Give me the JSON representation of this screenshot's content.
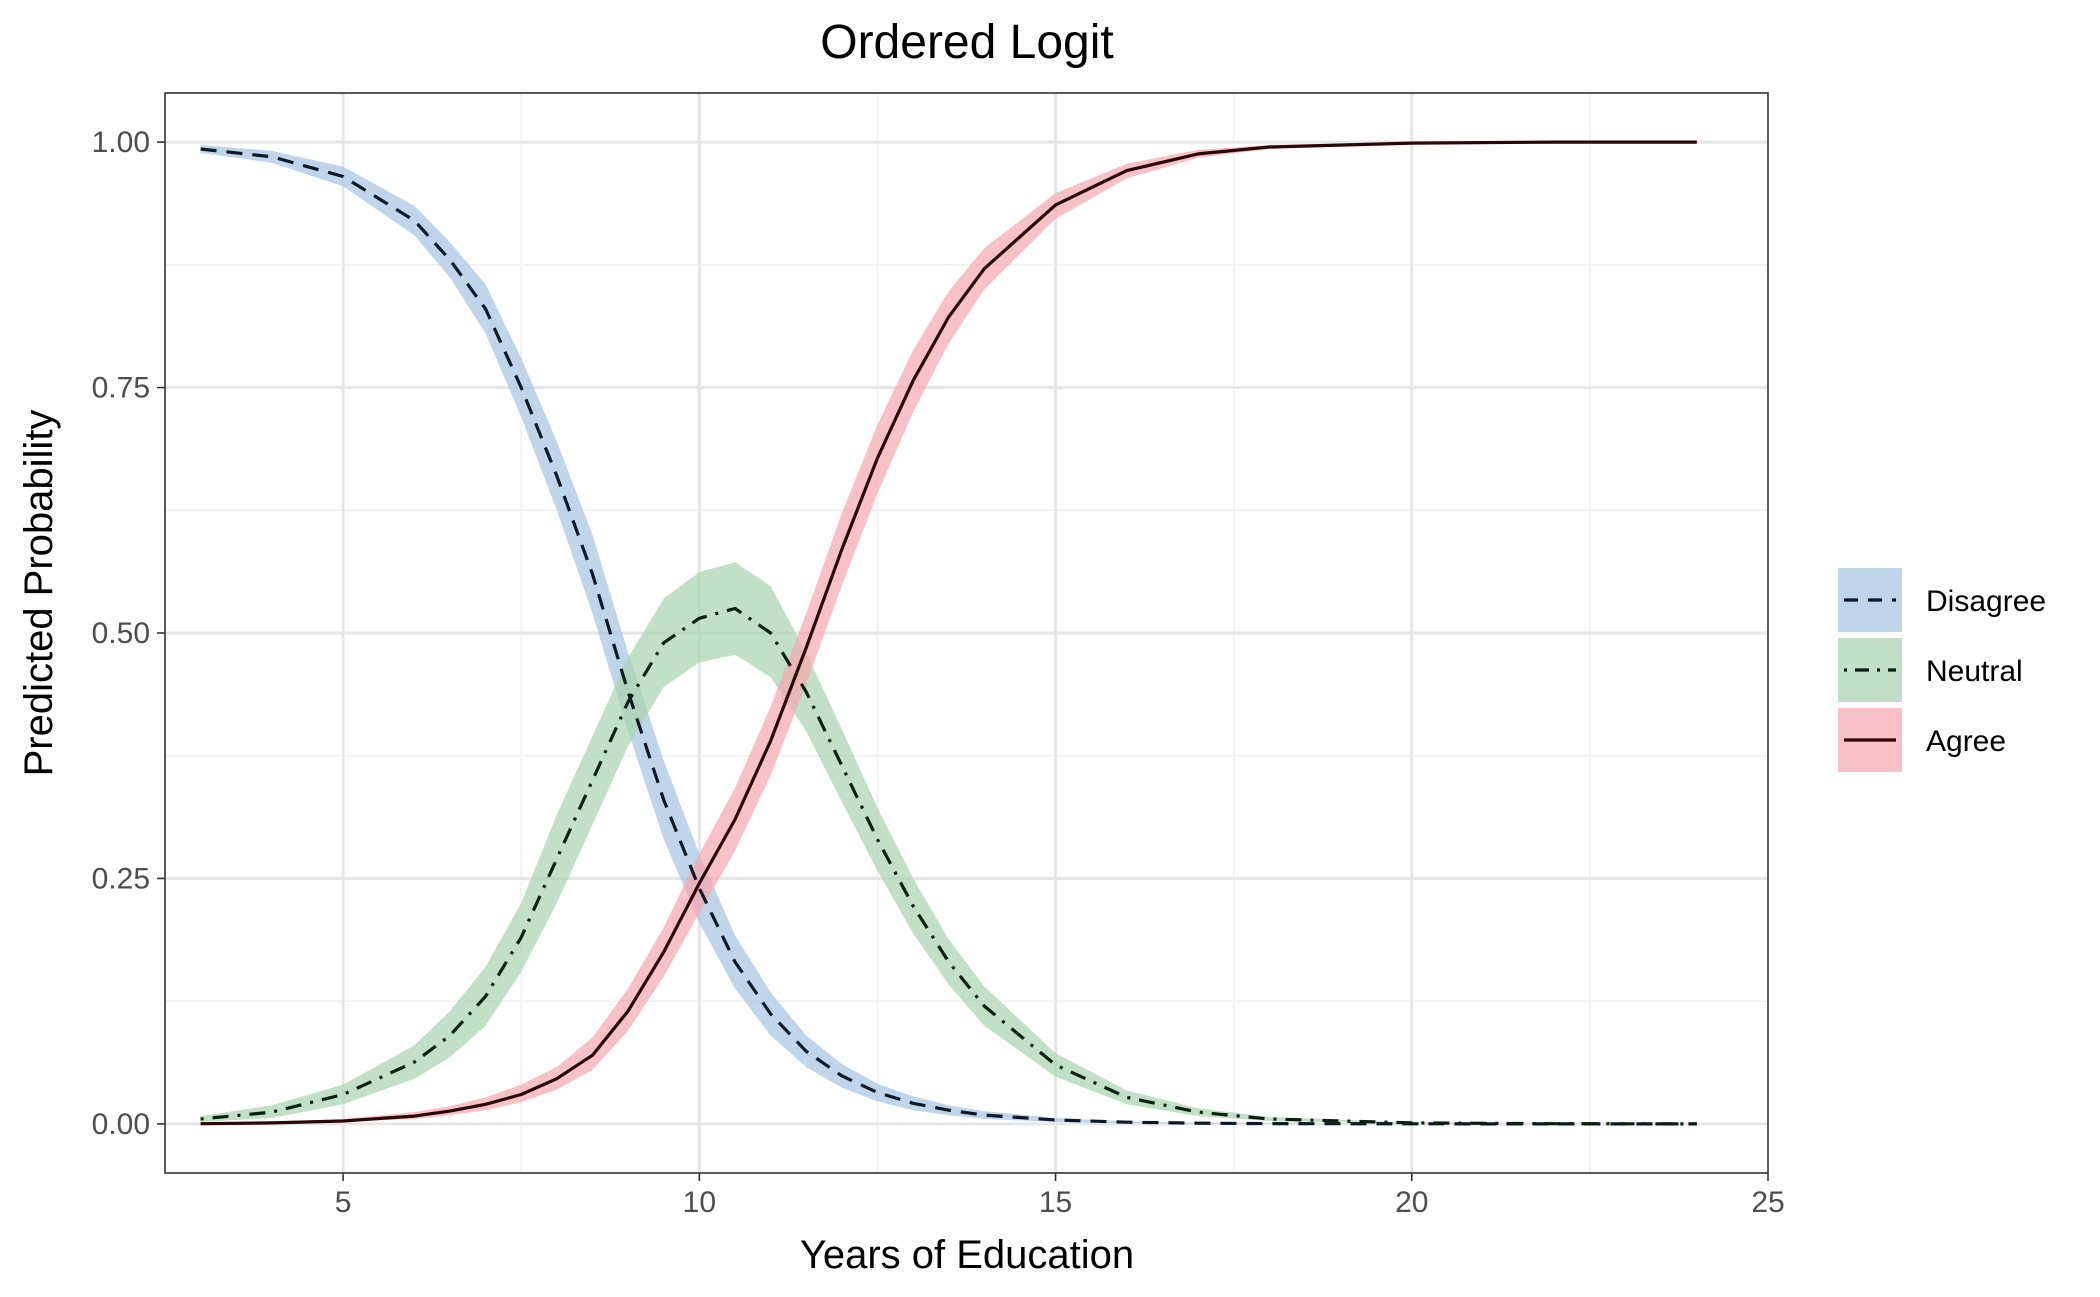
{
  "chart_data": {
    "type": "line",
    "title": "Ordered Logit",
    "xlabel": "Years of Education",
    "ylabel": "Predicted Probability",
    "xlim": [
      2.5,
      25
    ],
    "ylim": [
      -0.05,
      1.05
    ],
    "xticks": [
      5,
      10,
      15,
      20,
      25
    ],
    "xtick_labels": [
      "5",
      "10",
      "15",
      "20",
      "25"
    ],
    "yticks": [
      0,
      0.25,
      0.5,
      0.75,
      1
    ],
    "ytick_labels": [
      "0.00",
      "0.25",
      "0.50",
      "0.75",
      "1.00"
    ],
    "grid": true,
    "legend_position": "right",
    "x": [
      3,
      4,
      5,
      6,
      6.5,
      7,
      7.5,
      8,
      8.5,
      9,
      9.5,
      10,
      10.5,
      11,
      11.5,
      12,
      12.5,
      13,
      13.5,
      14,
      15,
      16,
      17,
      18,
      20,
      22,
      24
    ],
    "series": [
      {
        "name": "Disagree",
        "line": "dashed",
        "band_color": "#a8c4e2",
        "values": [
          0.993,
          0.985,
          0.965,
          0.92,
          0.88,
          0.83,
          0.75,
          0.66,
          0.56,
          0.44,
          0.33,
          0.24,
          0.165,
          0.112,
          0.074,
          0.049,
          0.032,
          0.021,
          0.014,
          0.009,
          0.004,
          0.0017,
          0.0007,
          0.0003,
          0.0001,
          0.0,
          0.0
        ],
        "lower": [
          0.989,
          0.979,
          0.955,
          0.905,
          0.862,
          0.805,
          0.72,
          0.625,
          0.52,
          0.4,
          0.29,
          0.205,
          0.138,
          0.09,
          0.058,
          0.037,
          0.023,
          0.014,
          0.009,
          0.005,
          0.002,
          0.0008,
          0.0003,
          0.0001,
          0.0,
          0.0,
          0.0
        ],
        "upper": [
          0.997,
          0.991,
          0.975,
          0.935,
          0.898,
          0.855,
          0.78,
          0.695,
          0.6,
          0.48,
          0.37,
          0.275,
          0.192,
          0.134,
          0.09,
          0.061,
          0.041,
          0.028,
          0.019,
          0.013,
          0.006,
          0.0026,
          0.0011,
          0.0005,
          0.0002,
          0.0,
          0.0
        ]
      },
      {
        "name": "Neutral",
        "line": "dotdash",
        "band_color": "#a9d4ae",
        "values": [
          0.005,
          0.012,
          0.03,
          0.063,
          0.09,
          0.13,
          0.19,
          0.27,
          0.35,
          0.43,
          0.49,
          0.515,
          0.525,
          0.5,
          0.44,
          0.365,
          0.29,
          0.222,
          0.165,
          0.12,
          0.06,
          0.027,
          0.012,
          0.005,
          0.001,
          0.0002,
          0.0
        ],
        "lower": [
          0.002,
          0.006,
          0.02,
          0.046,
          0.068,
          0.1,
          0.155,
          0.225,
          0.305,
          0.385,
          0.445,
          0.47,
          0.478,
          0.455,
          0.4,
          0.328,
          0.258,
          0.194,
          0.142,
          0.1,
          0.048,
          0.02,
          0.008,
          0.003,
          0.0005,
          0.0001,
          0.0
        ],
        "upper": [
          0.008,
          0.019,
          0.04,
          0.08,
          0.115,
          0.16,
          0.225,
          0.315,
          0.395,
          0.475,
          0.535,
          0.562,
          0.572,
          0.548,
          0.48,
          0.402,
          0.322,
          0.25,
          0.188,
          0.14,
          0.072,
          0.034,
          0.016,
          0.007,
          0.0015,
          0.0003,
          0.0
        ]
      },
      {
        "name": "Agree",
        "line": "solid",
        "band_color": "#f4a9ae",
        "values": [
          0.0002,
          0.001,
          0.003,
          0.008,
          0.013,
          0.02,
          0.03,
          0.046,
          0.07,
          0.115,
          0.175,
          0.245,
          0.31,
          0.39,
          0.485,
          0.585,
          0.678,
          0.757,
          0.822,
          0.871,
          0.936,
          0.971,
          0.988,
          0.995,
          0.999,
          1.0,
          1.0
        ],
        "lower": [
          0.0,
          0.0005,
          0.002,
          0.005,
          0.009,
          0.014,
          0.022,
          0.035,
          0.055,
          0.095,
          0.15,
          0.215,
          0.278,
          0.355,
          0.448,
          0.548,
          0.642,
          0.725,
          0.795,
          0.85,
          0.922,
          0.963,
          0.984,
          0.993,
          0.998,
          1.0,
          1.0
        ],
        "upper": [
          0.0005,
          0.002,
          0.005,
          0.012,
          0.018,
          0.027,
          0.04,
          0.058,
          0.088,
          0.138,
          0.2,
          0.275,
          0.342,
          0.425,
          0.52,
          0.622,
          0.712,
          0.788,
          0.848,
          0.892,
          0.948,
          0.978,
          0.992,
          0.997,
          1.0,
          1.0,
          1.0
        ]
      }
    ]
  }
}
